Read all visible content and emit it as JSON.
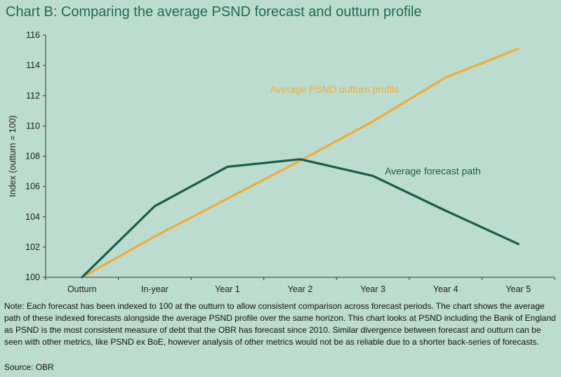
{
  "title": "Chart B: Comparing the average PSND forecast and outturn profile",
  "note": "Note: Each forecast has been indexed to 100 at the outturn to allow consistent comparison across forecast periods. The chart shows the average path of these indexed forecasts alongside the average PSND profile over the same horizon. This chart looks at PSND including the Bank of England as PSND is the most consistent measure of debt that the OBR has forecast since 2010. Similar divergence between forecast and outturn can be seen with other metrics, like PSND ex BoE, however analysis of other metrics would not be as reliable due to a shorter back-series of forecasts.",
  "source": "Source: OBR",
  "chart_data": {
    "type": "line",
    "title": "Chart B: Comparing the average PSND forecast and outturn profile",
    "xlabel": "",
    "ylabel": "Index  (outturn = 100)",
    "categories": [
      "Outturn",
      "In-year",
      "Year 1",
      "Year 2",
      "Year 3",
      "Year 4",
      "Year 5"
    ],
    "ylim": [
      100,
      116
    ],
    "yticks": [
      100,
      102,
      104,
      106,
      108,
      110,
      112,
      114,
      116
    ],
    "series": [
      {
        "name": "Average PSND outturn profile",
        "color": "#f0ac3c",
        "values": [
          100,
          102.7,
          105.2,
          107.7,
          110.3,
          113.2,
          115.1
        ]
      },
      {
        "name": "Average forecast path",
        "color": "#175e4a",
        "values": [
          100,
          104.7,
          107.3,
          107.8,
          106.7,
          104.4,
          102.2
        ]
      }
    ],
    "annotations": [
      {
        "text": "Average PSND outturn profile",
        "series": 0
      },
      {
        "text": "Average forecast path",
        "series": 1
      }
    ]
  }
}
